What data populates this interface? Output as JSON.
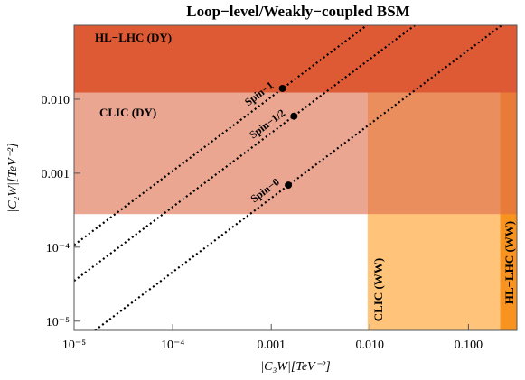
{
  "chart_data": {
    "type": "region",
    "title": "Loop−level/Weakly−coupled BSM",
    "x_label": "|C₃W|[TeV⁻²]",
    "y_label": "|C₂W|[TeV⁻²]",
    "log_x": true,
    "log_y": true,
    "xlim": [
      1e-05,
      0.31
    ],
    "ylim": [
      7.5e-06,
      0.1
    ],
    "xticks": [
      {
        "value": 1e-05,
        "label": "10⁻⁵"
      },
      {
        "value": 0.0001,
        "label": "10⁻⁴"
      },
      0.001,
      {
        "value": 0.01,
        "label": "0.010"
      },
      {
        "value": 0.1,
        "label": "0.100"
      }
    ],
    "yticks": [
      {
        "value": 1e-05,
        "label": "10⁻⁵"
      },
      {
        "value": 0.0001,
        "label": "10⁻⁴"
      },
      0.001,
      {
        "value": 0.01,
        "label": "0.010"
      }
    ],
    "regions": [
      {
        "name": "CLIC (WW)",
        "color": "#ffb04d",
        "opacity": 0.75,
        "xlim": [
          0.0095,
          0.31
        ],
        "ylim": [
          7.5e-06,
          0.0123
        ]
      },
      {
        "name": "HL−LHC (WW)",
        "color": "#f7931e",
        "opacity": 1,
        "xlim": [
          0.21,
          0.31
        ],
        "ylim": [
          7.5e-06,
          0.0123
        ]
      },
      {
        "name": "CLIC (DY)",
        "color": "#de6a4a",
        "opacity": 0.6,
        "xlim": [
          1e-05,
          0.31
        ],
        "ylim": [
          0.00028,
          0.0123
        ]
      },
      {
        "name": "HL−LHC (DY)",
        "color": "#dd5a35",
        "opacity": 1,
        "xlim": [
          1e-05,
          0.31
        ],
        "ylim": [
          0.0123,
          0.1
        ]
      }
    ],
    "series": [
      {
        "name": "Spin−1",
        "x": [
          1e-05,
          0.0093
        ],
        "y": [
          0.000107,
          0.1
        ],
        "point": [
          0.0013,
          0.014
        ]
      },
      {
        "name": "Spin−1/2",
        "x": [
          1e-05,
          0.0286
        ],
        "y": [
          3.5e-05,
          0.1
        ],
        "point": [
          0.0017,
          0.0059
        ]
      },
      {
        "name": "Spin−0",
        "x": [
          1.63e-05,
          0.217
        ],
        "y": [
          7.5e-06,
          0.1
        ],
        "point": [
          0.00149,
          0.00069
        ]
      }
    ]
  }
}
